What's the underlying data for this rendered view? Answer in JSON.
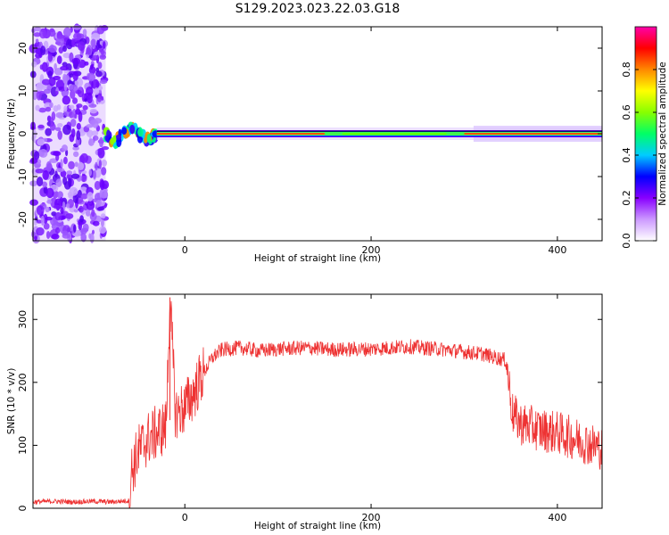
{
  "title": "S129.2023.023.22.03.G18",
  "chart_data": [
    {
      "type": "heatmap",
      "xlabel": "Height of straight line (km)",
      "ylabel": "Frequency (Hz)",
      "xlim": [
        -163,
        448
      ],
      "ylim": [
        -25,
        25
      ],
      "xticks": [
        0,
        200,
        400
      ],
      "yticks": [
        -20,
        -10,
        0,
        10,
        20
      ],
      "grid": false,
      "colorbar": {
        "label": "Normalized spectral amplitude",
        "range": [
          0.0,
          1.0
        ],
        "ticks": [
          0.0,
          0.2,
          0.4,
          0.6,
          0.8
        ],
        "tick_labels": [
          "0.0",
          "0.2",
          "0.4",
          "0.6",
          "0.8"
        ],
        "colors": [
          "#ffffff",
          "#cc99ff",
          "#8800ff",
          "#0000ff",
          "#00ccff",
          "#00ff66",
          "#88ff00",
          "#ffff00",
          "#ff8800",
          "#ff0000",
          "#ff00aa"
        ]
      },
      "features": {
        "noise_region_x": [
          -163,
          -85
        ],
        "spectral_line_frequency_hz": 0,
        "transition_region_x": [
          -85,
          -30
        ],
        "weaker_band_x": [
          150,
          300
        ]
      }
    },
    {
      "type": "line",
      "xlabel": "Height of straight line (km)",
      "ylabel": "SNR (10 * v/v)",
      "xlim": [
        -163,
        448
      ],
      "ylim": [
        0,
        340
      ],
      "xticks": [
        0,
        200,
        400
      ],
      "yticks": [
        0,
        100,
        200,
        300
      ],
      "grid": false,
      "color": "#ee3333",
      "series": [
        {
          "x": [
            -163,
            -140,
            -120,
            -100,
            -80,
            -60,
            -57,
            -50,
            -40,
            -30,
            -20,
            -16,
            -10,
            0,
            10,
            20,
            30,
            40,
            60,
            80,
            100,
            130,
            160,
            200,
            240,
            280,
            320,
            345,
            352,
            360,
            380,
            400,
            420,
            448
          ],
          "y": [
            10,
            11,
            10,
            11,
            10,
            12,
            60,
            90,
            110,
            120,
            130,
            335,
            150,
            160,
            185,
            215,
            240,
            252,
            255,
            250,
            253,
            255,
            252,
            253,
            257,
            252,
            245,
            235,
            150,
            135,
            125,
            120,
            110,
            95
          ]
        }
      ]
    }
  ]
}
